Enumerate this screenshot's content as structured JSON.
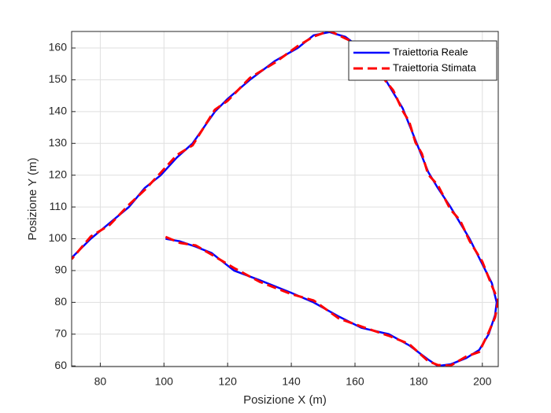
{
  "chart_data": {
    "type": "line",
    "xlabel": "Posizione X (m)",
    "ylabel": "Posizione Y (m)",
    "xlim": [
      71,
      205
    ],
    "ylim": [
      59.8,
      165.2
    ],
    "xticks": [
      80,
      100,
      120,
      140,
      160,
      180,
      200
    ],
    "yticks": [
      60,
      70,
      80,
      90,
      100,
      110,
      120,
      130,
      140,
      150,
      160
    ],
    "grid": true,
    "legend": "northeast",
    "series": [
      {
        "name": "Traiettoria Reale",
        "color": "#0000ff",
        "dash": "solid",
        "x": [
          100.5,
          105,
          110,
          115,
          122,
          130,
          140,
          147,
          155,
          162,
          170.6,
          177,
          183,
          186,
          190,
          195,
          199,
          202,
          204,
          204.5,
          203,
          200,
          196,
          193,
          190,
          186,
          183,
          181,
          179,
          177,
          175,
          172,
          169,
          165,
          161,
          157,
          152,
          147,
          142,
          135,
          127,
          120,
          116,
          109,
          104,
          99,
          94,
          89,
          83,
          77,
          71
        ],
        "values": [
          100,
          99.2,
          97.5,
          95.5,
          90,
          87,
          83,
          80,
          75.5,
          72,
          70,
          66.5,
          62,
          60,
          60.5,
          62.5,
          65,
          70,
          76,
          80,
          86,
          92,
          100,
          105,
          110,
          116,
          121,
          126,
          131,
          136,
          141,
          146,
          151,
          156,
          160.5,
          163.5,
          165,
          164,
          160,
          156,
          150,
          144,
          140,
          130,
          125.5,
          120,
          116,
          110,
          105,
          100,
          94
        ]
      },
      {
        "name": "Traiettoria Stimata",
        "color": "#ff0000",
        "dash": "dashed",
        "x": [
          100.5,
          105,
          110,
          115,
          122,
          130,
          140,
          147,
          155,
          162,
          170.6,
          177,
          183,
          186,
          190,
          195,
          199,
          202,
          204,
          205,
          203,
          200,
          196,
          193,
          190,
          186,
          183,
          181,
          179,
          177,
          175,
          172,
          169,
          165,
          161,
          157,
          152,
          147,
          142,
          135,
          127,
          120,
          116,
          109,
          104,
          99,
          94,
          89,
          83,
          77,
          71
        ],
        "values": [
          100.6,
          98.7,
          97.9,
          95,
          90.8,
          86.5,
          82.6,
          80.6,
          74.9,
          72.4,
          69.5,
          66.9,
          61.5,
          60.3,
          60.1,
          63,
          64.4,
          70.6,
          75.3,
          80.5,
          85.2,
          92.8,
          99.3,
          105.8,
          109.2,
          116.9,
          120.2,
          126.8,
          130.3,
          136.9,
          140.2,
          146.7,
          150.4,
          155.4,
          161.1,
          163,
          165.4,
          163.6,
          160.6,
          155.5,
          150.6,
          143.4,
          140.6,
          129.4,
          126.3,
          120.8,
          115.4,
          110.7,
          104.4,
          100.7,
          93.6
        ]
      }
    ]
  }
}
